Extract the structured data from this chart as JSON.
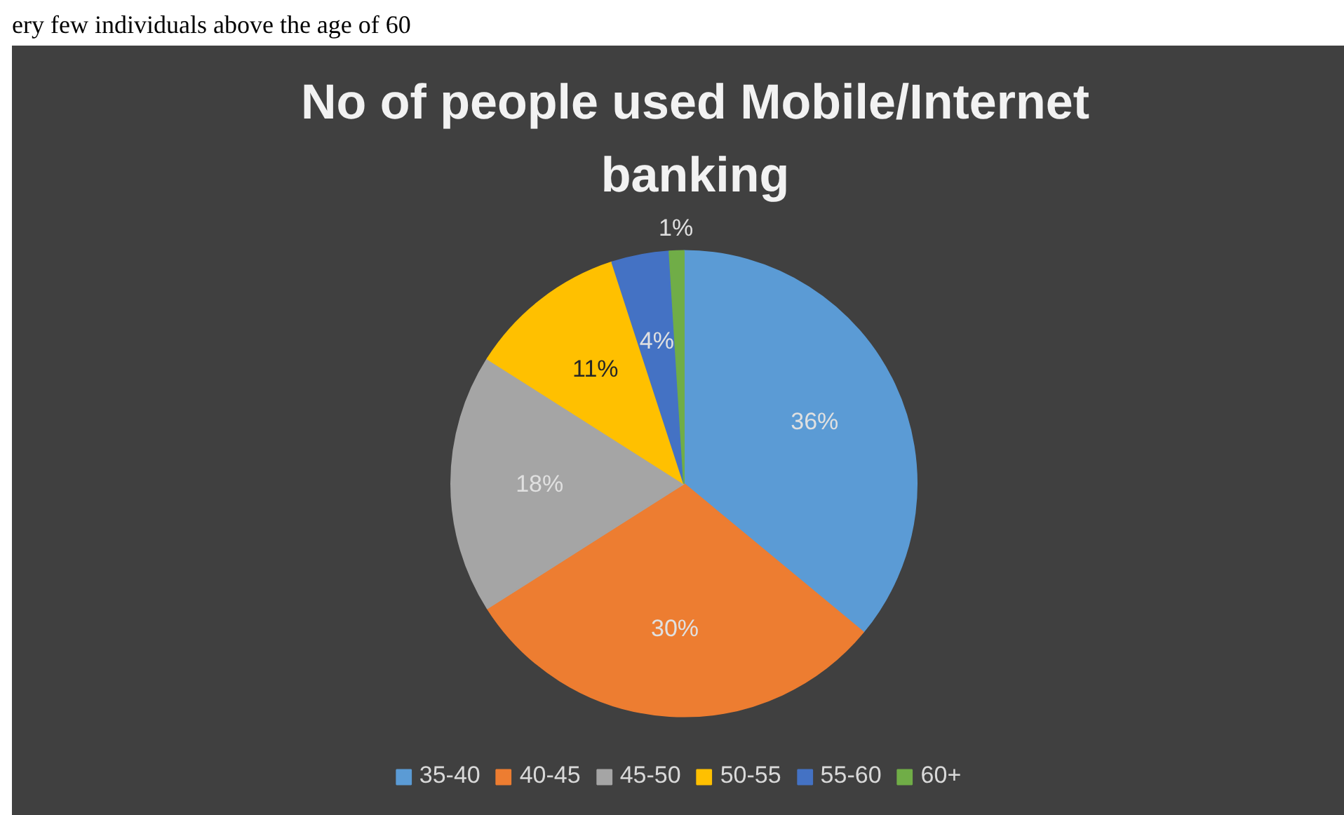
{
  "chart_data": {
    "type": "pie",
    "title": "No of people used Mobile/Internet banking",
    "annotations": [
      "ery few individuals above the age of 60"
    ],
    "categories": [
      "35-40",
      "40-45",
      "45-50",
      "50-55",
      "55-60",
      "60+"
    ],
    "values": [
      36,
      30,
      18,
      11,
      4,
      1
    ],
    "colors": [
      "#5b9bd5",
      "#ed7d31",
      "#a5a5a5",
      "#ffc000",
      "#4472c4",
      "#70ad47"
    ],
    "value_labels": [
      "36%",
      "30%",
      "18%",
      "11%",
      "4%",
      "1%"
    ],
    "legend": "bottom"
  }
}
